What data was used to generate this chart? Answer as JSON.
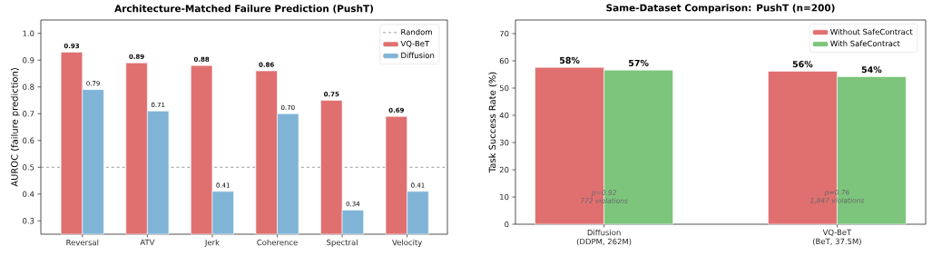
{
  "chart_data": [
    {
      "type": "bar",
      "title": "Architecture-Matched Failure Prediction (PushT)",
      "ylabel": "AUROC (failure prediction)",
      "categories": [
        "Reversal",
        "ATV",
        "Jerk",
        "Coherence",
        "Spectral",
        "Velocity"
      ],
      "series": [
        {
          "name": "VQ-BeT",
          "color": "#e07070",
          "values": [
            0.93,
            0.89,
            0.88,
            0.86,
            0.75,
            0.69
          ],
          "value_labels": [
            "0.93",
            "0.89",
            "0.88",
            "0.86",
            "0.75",
            "0.69"
          ]
        },
        {
          "name": "Diffusion",
          "color": "#7fb4d7",
          "values": [
            0.79,
            0.71,
            0.41,
            0.7,
            0.34,
            0.41
          ],
          "value_labels": [
            "0.79",
            "0.71",
            "0.41",
            "0.70",
            "0.34",
            "0.41"
          ]
        }
      ],
      "ylim": [
        0.25,
        1.05
      ],
      "yticks": [
        0.3,
        0.4,
        0.5,
        0.6,
        0.7,
        0.8,
        0.9,
        {
          "value": 1,
          "label": "1.0"
        }
      ],
      "ref_lines": [
        {
          "axis": "y",
          "value": 0.5,
          "label": "Random",
          "color": "#808080",
          "line_style": "dashed"
        }
      ],
      "legend": "top right",
      "grid": false
    },
    {
      "type": "bar",
      "title": "Same-Dataset Comparison: PushT (n=200)",
      "ylabel": "Task Success Rate (%)",
      "categories": [
        "Diffusion\n(DDPM, 262M)",
        "VQ-BeT\n(BeT, 37.5M)"
      ],
      "series": [
        {
          "name": "Without SafeContract",
          "color": "#e07070",
          "values": [
            57.6,
            56.2
          ],
          "value_labels": [
            "58%",
            "56%"
          ]
        },
        {
          "name": "With SafeContract",
          "color": "#7dc57d",
          "values": [
            56.6,
            54.2
          ],
          "value_labels": [
            "57%",
            "54%"
          ]
        }
      ],
      "ylim": [
        0,
        75
      ],
      "yticks": [
        0,
        10,
        20,
        30,
        40,
        50,
        60,
        70
      ],
      "annotations": [
        "p=0.92\n772 violations",
        "p=0.76\n1,847 violations"
      ],
      "legend": "top right",
      "grid": false
    }
  ]
}
